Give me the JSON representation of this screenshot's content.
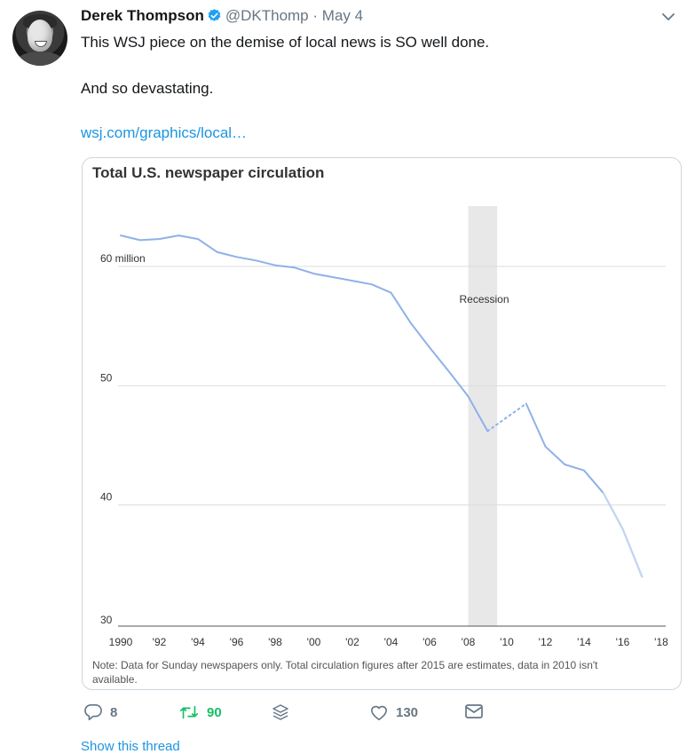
{
  "tweet": {
    "author_name": "Derek Thompson",
    "handle": "@DKThomp",
    "separator": "·",
    "date": "May 4",
    "lines": [
      "This WSJ piece on the demise of local news is SO well done.",
      "And so devastating."
    ],
    "link_text": "wsj.com/graphics/local…",
    "icons": {
      "verified": "verified-badge-icon",
      "menu": "chevron-down-icon"
    }
  },
  "actions": {
    "replies": "8",
    "retweets": "90",
    "likes": "130",
    "icons": [
      "reply-icon",
      "retweet-icon",
      "stack-icon",
      "heart-icon",
      "mail-icon"
    ],
    "retweet_color": "#17bf63"
  },
  "show_thread": "Show this thread",
  "chart_data": {
    "type": "line",
    "title": "Total U.S. newspaper circulation",
    "ylabel": "",
    "xlabel": "",
    "ylim": [
      30,
      65
    ],
    "xlim": [
      1990,
      2018
    ],
    "yticks": [
      {
        "value": 30,
        "label": "30"
      },
      {
        "value": 40,
        "label": "40"
      },
      {
        "value": 50,
        "label": "50"
      },
      {
        "value": 60,
        "label": "60 million"
      }
    ],
    "xticks": [
      {
        "value": 1990,
        "label": "1990"
      },
      {
        "value": 1992,
        "label": "'92"
      },
      {
        "value": 1994,
        "label": "'94"
      },
      {
        "value": 1996,
        "label": "'96"
      },
      {
        "value": 1998,
        "label": "'98"
      },
      {
        "value": 2000,
        "label": "'00"
      },
      {
        "value": 2002,
        "label": "'02"
      },
      {
        "value": 2004,
        "label": "'04"
      },
      {
        "value": 2006,
        "label": "'06"
      },
      {
        "value": 2008,
        "label": "'08"
      },
      {
        "value": 2010,
        "label": "'10"
      },
      {
        "value": 2012,
        "label": "'12"
      },
      {
        "value": 2014,
        "label": "'14"
      },
      {
        "value": 2016,
        "label": "'16"
      },
      {
        "value": 2018,
        "label": "'18"
      }
    ],
    "series": [
      {
        "x": [
          1990,
          1991,
          1992,
          1993,
          1994,
          1995,
          1996,
          1997,
          1998,
          1999,
          2000,
          2001,
          2002,
          2003,
          2004,
          2005,
          2006,
          2007,
          2008,
          2009
        ],
        "y": [
          62.6,
          62.2,
          62.3,
          62.6,
          62.3,
          61.2,
          60.8,
          60.5,
          60.1,
          59.9,
          59.4,
          59.1,
          58.8,
          58.5,
          57.8,
          55.3,
          53.2,
          51.2,
          49.1,
          46.2
        ]
      },
      {
        "x": [
          2009,
          2011
        ],
        "y": [
          46.2,
          48.5
        ],
        "style": "dotted",
        "note": "data in 2010 isn't available"
      },
      {
        "x": [
          2011,
          2012,
          2013,
          2014,
          2015,
          2016,
          2017
        ],
        "y": [
          48.5,
          44.9,
          43.4,
          42.9,
          41.0,
          38.0,
          34.0
        ],
        "estimate_from": 2015
      }
    ],
    "recession": {
      "start": 2008,
      "end": 2009.5,
      "label": "Recession"
    },
    "note_lines": [
      "Note: Data for Sunday newspapers only. Total circulation figures after 2015 are estimates, data in 2010 isn't",
      "available."
    ],
    "colors": {
      "line": "#8fb1e8",
      "line_light": "#c3d5f3",
      "grid": "#dddddd",
      "recession": "#e8e8e8"
    },
    "grid": true
  }
}
